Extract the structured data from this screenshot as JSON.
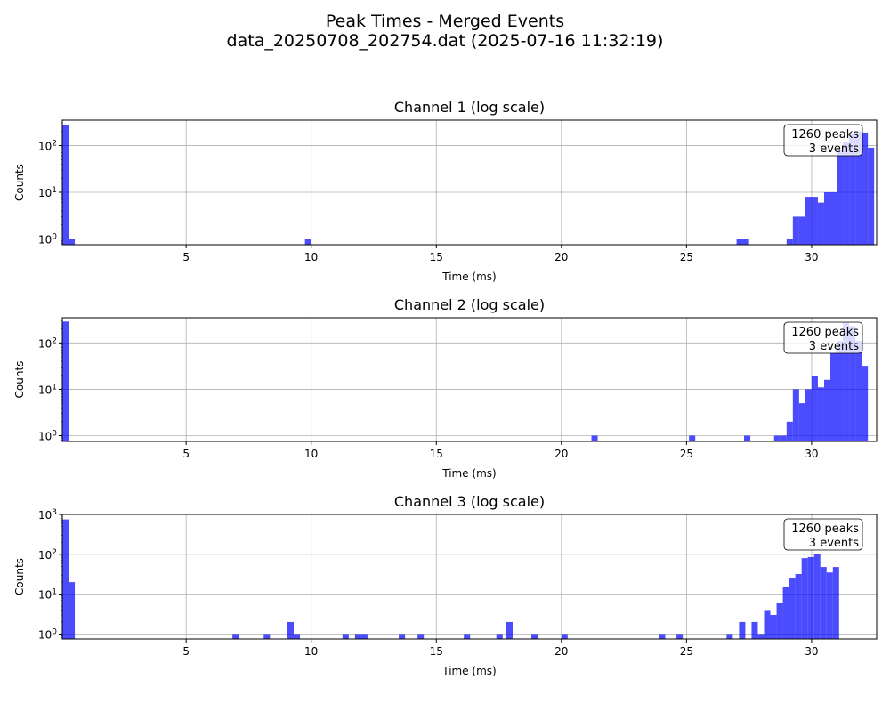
{
  "figure": {
    "title_line1": "Peak Times - Merged Events",
    "title_line2": "data_20250708_202754.dat (2025-07-16 11:32:19)"
  },
  "chart_data": [
    {
      "type": "bar",
      "title": "Channel 1 (log scale)",
      "xlabel": "Time (ms)",
      "ylabel": "Counts",
      "yscale": "log",
      "xlim": [
        0.05,
        32.6
      ],
      "ylim": [
        0.75,
        350
      ],
      "xticks": [
        5,
        10,
        15,
        20,
        25,
        30
      ],
      "yticks": [
        1,
        10,
        100
      ],
      "ytick_labels": [
        "10^0",
        "10^1",
        "10^2"
      ],
      "grid": true,
      "color": "#0000ff",
      "bin_width": 0.25,
      "annotation": [
        "1260 peaks",
        "3 events"
      ],
      "bins": [
        {
          "x": 0.05,
          "count": 270
        },
        {
          "x": 0.3,
          "count": 1
        },
        {
          "x": 9.75,
          "count": 1
        },
        {
          "x": 27.0,
          "count": 1
        },
        {
          "x": 27.25,
          "count": 1
        },
        {
          "x": 29.0,
          "count": 1
        },
        {
          "x": 29.25,
          "count": 3
        },
        {
          "x": 29.5,
          "count": 3
        },
        {
          "x": 29.75,
          "count": 8
        },
        {
          "x": 30.0,
          "count": 8
        },
        {
          "x": 30.25,
          "count": 6
        },
        {
          "x": 30.5,
          "count": 10
        },
        {
          "x": 30.75,
          "count": 10
        },
        {
          "x": 31.0,
          "count": 80
        },
        {
          "x": 31.25,
          "count": 120
        },
        {
          "x": 31.5,
          "count": 180
        },
        {
          "x": 31.75,
          "count": 200
        },
        {
          "x": 32.0,
          "count": 190
        },
        {
          "x": 32.25,
          "count": 90
        }
      ]
    },
    {
      "type": "bar",
      "title": "Channel 2 (log scale)",
      "xlabel": "Time (ms)",
      "ylabel": "Counts",
      "yscale": "log",
      "xlim": [
        0.05,
        32.6
      ],
      "ylim": [
        0.75,
        350
      ],
      "xticks": [
        5,
        10,
        15,
        20,
        25,
        30
      ],
      "yticks": [
        1,
        10,
        100
      ],
      "ytick_labels": [
        "10^0",
        "10^1",
        "10^2"
      ],
      "grid": true,
      "color": "#0000ff",
      "bin_width": 0.25,
      "annotation": [
        "1260 peaks",
        "3 events"
      ],
      "bins": [
        {
          "x": 0.05,
          "count": 290
        },
        {
          "x": 21.2,
          "count": 1
        },
        {
          "x": 25.1,
          "count": 1
        },
        {
          "x": 27.3,
          "count": 1
        },
        {
          "x": 28.5,
          "count": 1
        },
        {
          "x": 28.75,
          "count": 1
        },
        {
          "x": 29.0,
          "count": 2
        },
        {
          "x": 29.25,
          "count": 10
        },
        {
          "x": 29.5,
          "count": 5
        },
        {
          "x": 29.75,
          "count": 10
        },
        {
          "x": 30.0,
          "count": 19
        },
        {
          "x": 30.25,
          "count": 11
        },
        {
          "x": 30.5,
          "count": 16
        },
        {
          "x": 30.75,
          "count": 60
        },
        {
          "x": 31.0,
          "count": 110
        },
        {
          "x": 31.25,
          "count": 280
        },
        {
          "x": 31.5,
          "count": 230
        },
        {
          "x": 31.75,
          "count": 110
        },
        {
          "x": 32.0,
          "count": 32
        }
      ]
    },
    {
      "type": "bar",
      "title": "Channel 3 (log scale)",
      "xlabel": "Time (ms)",
      "ylabel": "Counts",
      "yscale": "log",
      "xlim": [
        0.05,
        32.6
      ],
      "ylim": [
        0.75,
        1000
      ],
      "xticks": [
        5,
        10,
        15,
        20,
        25,
        30
      ],
      "yticks": [
        1,
        10,
        100,
        1000
      ],
      "ytick_labels": [
        "10^0",
        "10^1",
        "10^2",
        "10^3"
      ],
      "grid": true,
      "color": "#0000ff",
      "bin_width": 0.25,
      "annotation": [
        "1260 peaks",
        "3 events"
      ],
      "bins": [
        {
          "x": 0.05,
          "count": 750
        },
        {
          "x": 0.3,
          "count": 20
        },
        {
          "x": 6.85,
          "count": 1
        },
        {
          "x": 8.1,
          "count": 1
        },
        {
          "x": 9.05,
          "count": 2
        },
        {
          "x": 9.3,
          "count": 1
        },
        {
          "x": 11.25,
          "count": 1
        },
        {
          "x": 11.75,
          "count": 1
        },
        {
          "x": 12.0,
          "count": 1
        },
        {
          "x": 13.5,
          "count": 1
        },
        {
          "x": 14.25,
          "count": 1
        },
        {
          "x": 16.1,
          "count": 1
        },
        {
          "x": 17.4,
          "count": 1
        },
        {
          "x": 17.8,
          "count": 2
        },
        {
          "x": 18.8,
          "count": 1
        },
        {
          "x": 20.0,
          "count": 1
        },
        {
          "x": 23.9,
          "count": 1
        },
        {
          "x": 24.6,
          "count": 1
        },
        {
          "x": 26.6,
          "count": 1
        },
        {
          "x": 27.1,
          "count": 2
        },
        {
          "x": 27.6,
          "count": 2
        },
        {
          "x": 27.85,
          "count": 1
        },
        {
          "x": 28.1,
          "count": 4
        },
        {
          "x": 28.35,
          "count": 3
        },
        {
          "x": 28.6,
          "count": 6
        },
        {
          "x": 28.85,
          "count": 15
        },
        {
          "x": 29.1,
          "count": 25
        },
        {
          "x": 29.35,
          "count": 32
        },
        {
          "x": 29.6,
          "count": 80
        },
        {
          "x": 29.85,
          "count": 85
        },
        {
          "x": 30.1,
          "count": 100
        },
        {
          "x": 30.35,
          "count": 48
        },
        {
          "x": 30.6,
          "count": 35
        },
        {
          "x": 30.85,
          "count": 48
        }
      ]
    }
  ]
}
